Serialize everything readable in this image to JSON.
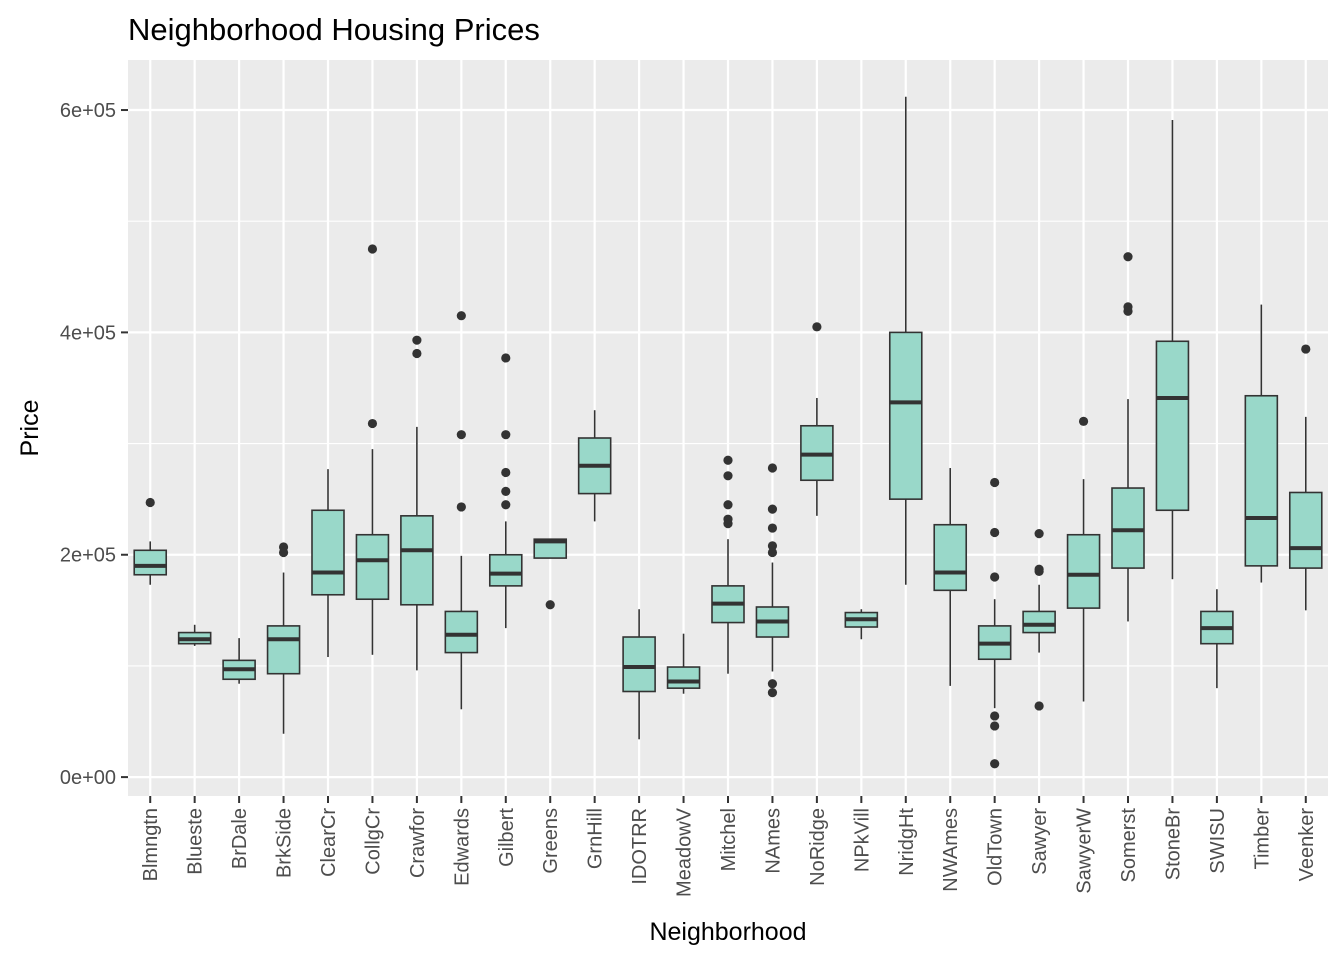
{
  "chart_data": {
    "type": "box",
    "title": "Neighborhood Housing Prices",
    "xlabel": "Neighborhood",
    "ylabel": "Price",
    "ylim": [
      -17000,
      645000
    ],
    "yticks": [
      0,
      200000,
      400000,
      600000
    ],
    "ytick_labels": [
      "0e+00",
      "2e+05",
      "4e+05",
      "6e+05"
    ],
    "grid": true,
    "legend": "none",
    "colors": {
      "box_fill": "#99d8c9",
      "box_stroke": "#333333",
      "panel_bg": "#ebebeb",
      "grid": "#ffffff"
    },
    "categories": [
      "Blmngtn",
      "Blueste",
      "BrDale",
      "BrkSide",
      "ClearCr",
      "CollgCr",
      "Crawfor",
      "Edwards",
      "Gilbert",
      "Greens",
      "GrnHill",
      "IDOTRR",
      "MeadowV",
      "Mitchel",
      "NAmes",
      "NoRidge",
      "NPkVill",
      "NridgHt",
      "NWAmes",
      "OldTown",
      "Sawyer",
      "SawyerW",
      "Somerst",
      "StoneBr",
      "SWISU",
      "Timber",
      "Veenker"
    ],
    "boxes": [
      {
        "min": 173000,
        "q1": 182000,
        "median": 190000,
        "q3": 204000,
        "max": 212000,
        "outliers": [
          247000
        ]
      },
      {
        "min": 118000,
        "q1": 120000,
        "median": 124000,
        "q3": 130000,
        "max": 137000,
        "outliers": []
      },
      {
        "min": 84000,
        "q1": 88000,
        "median": 97000,
        "q3": 105000,
        "max": 125000,
        "outliers": []
      },
      {
        "min": 39000,
        "q1": 93000,
        "median": 124000,
        "q3": 136000,
        "max": 184000,
        "outliers": [
          202000,
          207000
        ]
      },
      {
        "min": 108000,
        "q1": 164000,
        "median": 184000,
        "q3": 240000,
        "max": 277000,
        "outliers": []
      },
      {
        "min": 110000,
        "q1": 160000,
        "median": 195000,
        "q3": 218000,
        "max": 295000,
        "outliers": [
          318000,
          475000
        ]
      },
      {
        "min": 96000,
        "q1": 155000,
        "median": 204000,
        "q3": 235000,
        "max": 315000,
        "outliers": [
          381000,
          393000
        ]
      },
      {
        "min": 61000,
        "q1": 112000,
        "median": 128000,
        "q3": 149000,
        "max": 199000,
        "outliers": [
          243000,
          308000,
          415000
        ]
      },
      {
        "min": 134000,
        "q1": 172000,
        "median": 183000,
        "q3": 200000,
        "max": 230000,
        "outliers": [
          245000,
          257000,
          274000,
          308000,
          377000
        ]
      },
      {
        "min": 197000,
        "q1": 197000,
        "median": 212000,
        "q3": 214000,
        "max": 214000,
        "outliers": [
          155000
        ]
      },
      {
        "min": 230000,
        "q1": 255000,
        "median": 280000,
        "q3": 305000,
        "max": 330000,
        "outliers": []
      },
      {
        "min": 34000,
        "q1": 77000,
        "median": 99000,
        "q3": 126000,
        "max": 151000,
        "outliers": []
      },
      {
        "min": 75000,
        "q1": 80000,
        "median": 86000,
        "q3": 99000,
        "max": 129000,
        "outliers": []
      },
      {
        "min": 93000,
        "q1": 139000,
        "median": 156000,
        "q3": 172000,
        "max": 214000,
        "outliers": [
          228000,
          232000,
          245000,
          271000,
          285000
        ]
      },
      {
        "min": 95000,
        "q1": 126000,
        "median": 140000,
        "q3": 153000,
        "max": 193000,
        "outliers": [
          76000,
          84000,
          202000,
          208000,
          224000,
          241000,
          278000
        ]
      },
      {
        "min": 235000,
        "q1": 267000,
        "median": 290000,
        "q3": 316000,
        "max": 341000,
        "outliers": [
          405000
        ]
      },
      {
        "min": 124000,
        "q1": 135000,
        "median": 142000,
        "q3": 148000,
        "max": 151000,
        "outliers": []
      },
      {
        "min": 173000,
        "q1": 250000,
        "median": 337000,
        "q3": 400000,
        "max": 612000,
        "outliers": []
      },
      {
        "min": 82000,
        "q1": 168000,
        "median": 184000,
        "q3": 227000,
        "max": 278000,
        "outliers": []
      },
      {
        "min": 62000,
        "q1": 106000,
        "median": 120000,
        "q3": 136000,
        "max": 160000,
        "outliers": [
          12000,
          46000,
          55000,
          180000,
          220000,
          265000
        ]
      },
      {
        "min": 112000,
        "q1": 130000,
        "median": 137000,
        "q3": 149000,
        "max": 173000,
        "outliers": [
          64000,
          185000,
          187000,
          219000
        ]
      },
      {
        "min": 68000,
        "q1": 152000,
        "median": 182000,
        "q3": 218000,
        "max": 268000,
        "outliers": [
          320000
        ]
      },
      {
        "min": 140000,
        "q1": 188000,
        "median": 222000,
        "q3": 260000,
        "max": 340000,
        "outliers": [
          419000,
          423000,
          468000
        ]
      },
      {
        "min": 178000,
        "q1": 240000,
        "median": 341000,
        "q3": 392000,
        "max": 591000,
        "outliers": []
      },
      {
        "min": 80000,
        "q1": 120000,
        "median": 134000,
        "q3": 149000,
        "max": 169000,
        "outliers": []
      },
      {
        "min": 175000,
        "q1": 190000,
        "median": 233000,
        "q3": 343000,
        "max": 425000,
        "outliers": []
      },
      {
        "min": 150000,
        "q1": 188000,
        "median": 206000,
        "q3": 256000,
        "max": 324000,
        "outliers": [
          385000
        ]
      }
    ]
  }
}
